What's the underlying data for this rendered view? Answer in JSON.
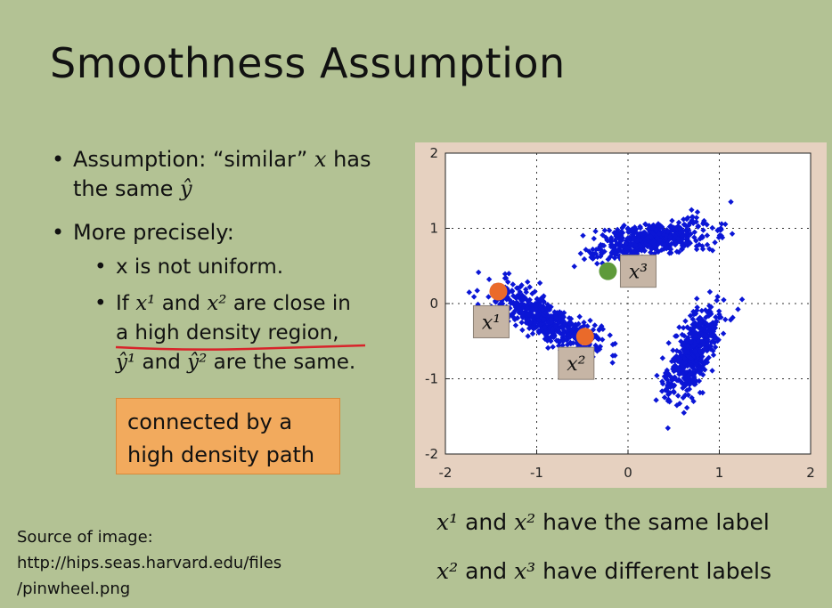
{
  "slide": {
    "title": "Smoothness Assumption",
    "bullets": {
      "b1_pre": "Assumption: “similar” ",
      "b1_x": "x",
      "b1_post": " has",
      "b1_line2_pre": "the same ",
      "b1_line2_y": "ŷ",
      "b2": "More precisely:",
      "sub1": "x is not uniform.",
      "sub2_if": "If ",
      "sub2_x1": "x¹",
      "sub2_and": " and ",
      "sub2_x2": "x²",
      "sub2_close": " are close in",
      "sub2_line2": "a high density region,",
      "sub2_y1": "ŷ¹",
      "sub2_and2": " and ",
      "sub2_y2": "ŷ²",
      "sub2_same": " are the same."
    },
    "callout": {
      "line1": "connected by a",
      "line2": "high density path"
    },
    "caption1": {
      "x1": "x¹",
      "mid": " and ",
      "x2": "x²",
      "rest": " have the same label"
    },
    "caption2": {
      "x2": "x²",
      "mid": " and ",
      "x3": "x³",
      "rest": " have different labels"
    },
    "source": {
      "line1": "Source of image:",
      "line2": "http://hips.seas.harvard.edu/files",
      "line3": "/pinwheel.png"
    }
  },
  "chart_data": {
    "type": "scatter",
    "xlim": [
      -2,
      2
    ],
    "ylim": [
      -2,
      2
    ],
    "x_ticks": [
      "-2",
      "-1",
      "0",
      "1",
      "2"
    ],
    "y_ticks": [
      "2",
      "1",
      "0",
      "-1",
      "-2"
    ],
    "grid": "dotted",
    "colors": {
      "points": "#0b16d6",
      "x1": "#ea6a2a",
      "x2": "#ea6a2a",
      "x3": "#5e9a3a",
      "background": "#e6d1c0"
    },
    "highlighted_points": [
      {
        "label": "x¹",
        "x": -1.42,
        "y": 0.16
      },
      {
        "label": "x²",
        "x": -0.47,
        "y": -0.44
      },
      {
        "label": "x³",
        "x": -0.22,
        "y": 0.43
      }
    ],
    "arms": [
      {
        "name": "left",
        "x0": -1.6,
        "y0": 0.4,
        "x1": -0.1,
        "y1": -0.7
      },
      {
        "name": "top",
        "x0": -0.5,
        "y0": 0.6,
        "x1": 0.8,
        "y1": 1.0
      },
      {
        "name": "right",
        "x0": 0.3,
        "y0": -1.3,
        "x1": 1.0,
        "y1": 0.1
      }
    ]
  }
}
